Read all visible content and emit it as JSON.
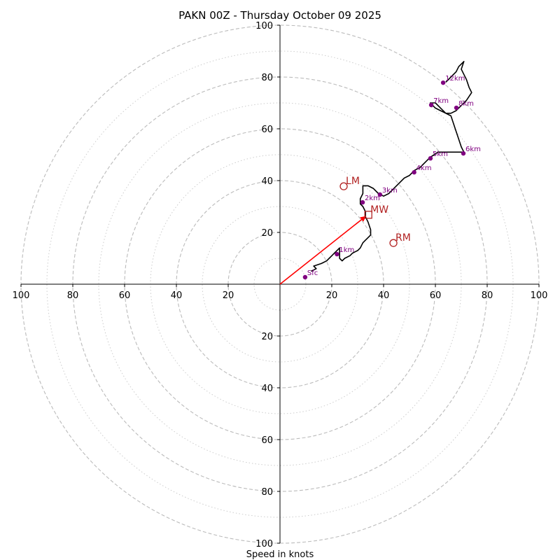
{
  "chart_data": {
    "type": "hodograph",
    "title": "PAKN 00Z - Thursday October 09 2025",
    "xlabel": "Speed in knots",
    "range": [
      -100,
      100
    ],
    "ring_major": [
      20,
      40,
      60,
      80,
      100
    ],
    "ring_minor": [
      10,
      30,
      50,
      70,
      90
    ],
    "grid": true,
    "ticks": [
      {
        "v": -100,
        "label": "100"
      },
      {
        "v": -80,
        "label": "80"
      },
      {
        "v": -60,
        "label": "60"
      },
      {
        "v": -40,
        "label": "40"
      },
      {
        "v": -20,
        "label": "20"
      },
      {
        "v": 20,
        "label": "20"
      },
      {
        "v": 40,
        "label": "40"
      },
      {
        "v": 60,
        "label": "60"
      },
      {
        "v": 80,
        "label": "80"
      },
      {
        "v": 100,
        "label": "100"
      }
    ],
    "trace": [
      [
        12,
        5
      ],
      [
        14,
        6
      ],
      [
        13,
        7
      ],
      [
        16,
        8
      ],
      [
        18,
        9
      ],
      [
        19,
        10
      ],
      [
        20,
        11
      ],
      [
        21,
        12
      ],
      [
        22,
        13
      ],
      [
        23,
        14
      ],
      [
        23,
        10
      ],
      [
        24,
        9
      ],
      [
        25,
        10
      ],
      [
        27,
        11
      ],
      [
        28,
        12
      ],
      [
        30,
        13
      ],
      [
        31,
        14
      ],
      [
        32,
        16
      ],
      [
        33,
        17
      ],
      [
        34,
        18
      ],
      [
        35,
        19
      ],
      [
        35,
        21
      ],
      [
        34,
        24
      ],
      [
        33,
        26
      ],
      [
        33,
        28
      ],
      [
        32,
        30
      ],
      [
        31,
        31
      ],
      [
        31,
        33
      ],
      [
        32,
        35
      ],
      [
        32,
        38
      ],
      [
        34,
        38
      ],
      [
        36,
        37
      ],
      [
        38,
        35
      ],
      [
        40,
        34
      ],
      [
        42,
        35
      ],
      [
        44,
        37
      ],
      [
        46,
        39
      ],
      [
        48,
        41
      ],
      [
        50,
        42
      ],
      [
        52,
        44
      ],
      [
        54,
        45
      ],
      [
        56,
        47
      ],
      [
        58,
        49
      ],
      [
        61,
        51
      ],
      [
        64,
        51
      ],
      [
        68,
        51
      ],
      [
        71,
        51
      ],
      [
        70,
        53
      ],
      [
        69,
        56
      ],
      [
        68,
        59
      ],
      [
        67,
        62
      ],
      [
        66,
        65
      ],
      [
        64,
        66
      ],
      [
        62,
        68
      ],
      [
        60,
        70
      ],
      [
        58,
        70
      ],
      [
        60,
        68
      ],
      [
        62,
        67
      ],
      [
        64,
        66
      ],
      [
        66,
        66
      ],
      [
        68,
        67
      ],
      [
        70,
        69
      ],
      [
        72,
        71
      ],
      [
        74,
        74
      ],
      [
        73,
        76
      ],
      [
        72,
        79
      ],
      [
        71,
        81
      ],
      [
        70,
        83
      ],
      [
        71,
        86
      ],
      [
        69,
        84
      ],
      [
        68,
        82
      ],
      [
        66,
        80
      ],
      [
        64,
        78
      ]
    ],
    "height_markers": [
      {
        "label": "Sfc",
        "u": 9.7,
        "v": 2.7
      },
      {
        "label": "1km",
        "u": 22,
        "v": 11.6
      },
      {
        "label": "2km",
        "u": 31.9,
        "v": 31.6
      },
      {
        "label": "3km",
        "u": 38.6,
        "v": 34.6
      },
      {
        "label": "4km",
        "u": 51.8,
        "v": 43.2
      },
      {
        "label": "5km",
        "u": 58.1,
        "v": 48.6
      },
      {
        "label": "6km",
        "u": 70.8,
        "v": 50.5
      },
      {
        "label": "7km",
        "u": 58.4,
        "v": 69.2
      },
      {
        "label": "8km",
        "u": 68.1,
        "v": 68.1
      },
      {
        "label": "12km",
        "u": 63.0,
        "v": 77.8
      }
    ],
    "motion_markers": [
      {
        "label": "LM",
        "u": 24.6,
        "v": 37.8,
        "shape": "circle"
      },
      {
        "label": "MW",
        "u": 34.1,
        "v": 26.8,
        "shape": "square"
      },
      {
        "label": "RM",
        "u": 43.8,
        "v": 15.9,
        "shape": "circle"
      }
    ],
    "motion_vector": {
      "from": [
        0,
        0
      ],
      "to": [
        33.2,
        26.3
      ]
    },
    "colors": {
      "trace": "#000000",
      "markers": "#800080",
      "motion": "#b22222",
      "vector": "#ff0000",
      "grid": "#bbbbbb",
      "axes": "#000000"
    }
  }
}
